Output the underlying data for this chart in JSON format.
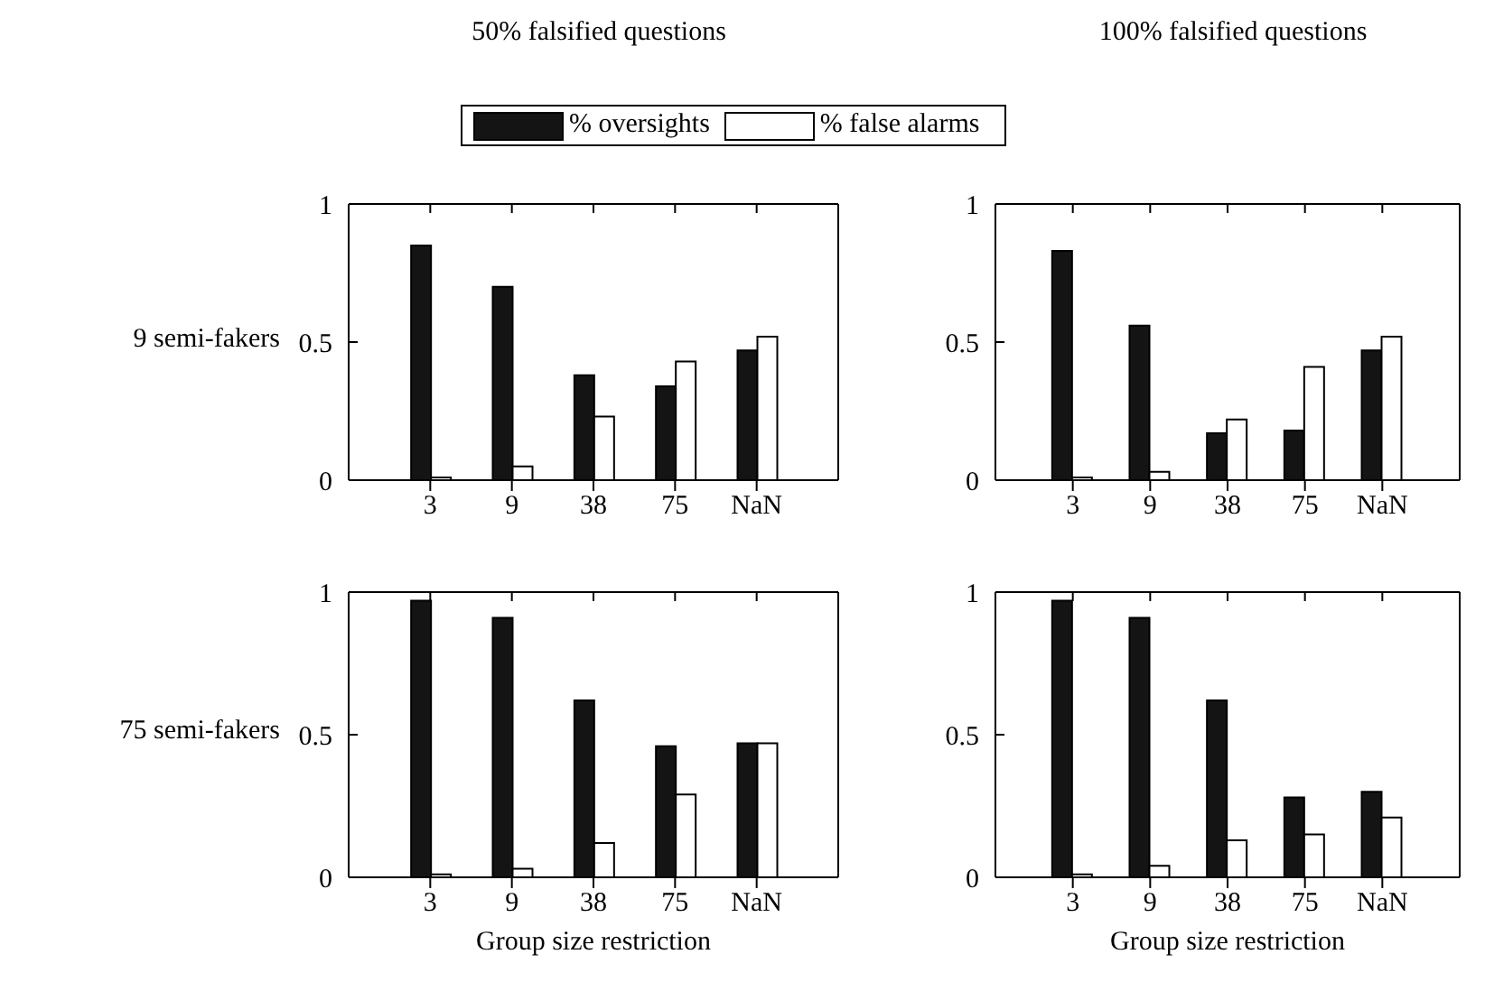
{
  "chart_data": [
    {
      "type": "bar",
      "title": "50% falsified questions",
      "ylabel": "9 semi-fakers",
      "legend": "top",
      "categories": [
        "3",
        "9",
        "38",
        "75",
        "NaN"
      ],
      "ylim": [
        0,
        1
      ],
      "yticks": [
        0,
        0.5,
        1
      ],
      "series": [
        {
          "name": "% oversights",
          "color": "#141414",
          "values": [
            0.85,
            0.7,
            0.38,
            0.34,
            0.47
          ]
        },
        {
          "name": "% false alarms",
          "color": "#ffffff",
          "values": [
            0.01,
            0.05,
            0.23,
            0.43,
            0.52
          ]
        }
      ]
    },
    {
      "type": "bar",
      "title": "100% falsified questions",
      "categories": [
        "3",
        "9",
        "38",
        "75",
        "NaN"
      ],
      "ylim": [
        0,
        1
      ],
      "yticks": [
        0,
        0.5,
        1
      ],
      "series": [
        {
          "color": "#141414",
          "values": [
            0.83,
            0.56,
            0.17,
            0.18,
            0.47
          ]
        },
        {
          "color": "#ffffff",
          "values": [
            0.01,
            0.03,
            0.22,
            0.41,
            0.52
          ]
        }
      ]
    },
    {
      "type": "bar",
      "ylabel": "75 semi-fakers",
      "xlabel": "Group size restriction",
      "categories": [
        "3",
        "9",
        "38",
        "75",
        "NaN"
      ],
      "ylim": [
        0,
        1
      ],
      "yticks": [
        0,
        0.5,
        1
      ],
      "series": [
        {
          "color": "#141414",
          "values": [
            0.97,
            0.91,
            0.62,
            0.46,
            0.47
          ]
        },
        {
          "color": "#ffffff",
          "values": [
            0.01,
            0.03,
            0.12,
            0.29,
            0.47
          ]
        }
      ]
    },
    {
      "type": "bar",
      "xlabel": "Group size restriction",
      "categories": [
        "3",
        "9",
        "38",
        "75",
        "NaN"
      ],
      "ylim": [
        0,
        1
      ],
      "yticks": [
        0,
        0.5,
        1
      ],
      "series": [
        {
          "color": "#141414",
          "values": [
            0.97,
            0.91,
            0.62,
            0.28,
            0.3
          ]
        },
        {
          "color": "#ffffff",
          "values": [
            0.01,
            0.04,
            0.13,
            0.15,
            0.21
          ]
        }
      ]
    }
  ]
}
